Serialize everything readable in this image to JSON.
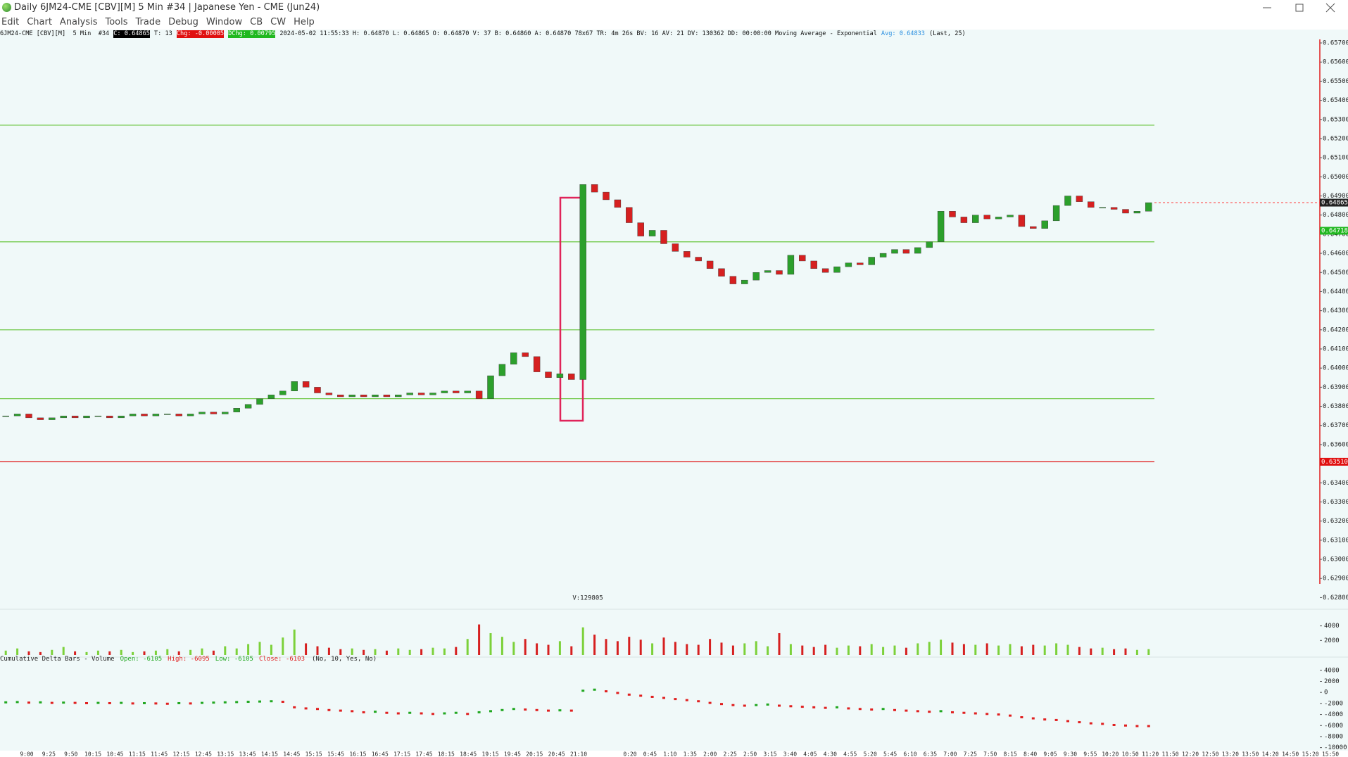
{
  "window": {
    "title": "Daily 6JM24-CME [CBV][M]  5 Min  #34 | Japanese Yen - CME (Jun24)",
    "menu": [
      "Edit",
      "Chart",
      "Analysis",
      "Tools",
      "Trade",
      "Debug",
      "Window",
      "CB",
      "CW",
      "Help"
    ]
  },
  "info_bar": [
    {
      "text": "6JM24-CME [CBV][M]  5 Min  #34",
      "style": "plain"
    },
    {
      "text": "C: 0.64865",
      "style": "black"
    },
    {
      "text": "T: 13",
      "style": "plain"
    },
    {
      "text": "Chg: -0.00005",
      "style": "red"
    },
    {
      "text": "DChg: 0.00795",
      "style": "green"
    },
    {
      "text": "2024-05-02 11:55:33 H: 0.64870 L: 0.64865 O: 0.64870 V: 37 B: 0.64860 A: 0.64870 78x67 TR: 4m 26s BV: 16 AV: 21 DV: 130362 DD: 00:00:00 Moving Average - Exponential",
      "style": "plain"
    },
    {
      "text": "Avg: 0.64833",
      "style": "blue"
    },
    {
      "text": "(Last, 25)",
      "style": "plain"
    }
  ],
  "time_axis": [
    "9:00",
    "9:25",
    "9:50",
    "10:15",
    "10:45",
    "11:15",
    "11:45",
    "12:15",
    "12:45",
    "13:15",
    "13:45",
    "14:15",
    "14:45",
    "15:15",
    "15:45",
    "16:15",
    "16:45",
    "17:15",
    "17:45",
    "18:15",
    "18:45",
    "19:15",
    "19:45",
    "20:15",
    "20:45",
    "21:10",
    "0:20",
    "0:45",
    "1:10",
    "1:35",
    "2:00",
    "2:25",
    "2:50",
    "3:15",
    "3:40",
    "4:05",
    "4:30",
    "4:55",
    "5:20",
    "5:45",
    "6:10",
    "6:35",
    "7:00",
    "7:25",
    "7:50",
    "8:15",
    "8:40",
    "9:05",
    "9:30",
    "9:55",
    "10:20",
    "10:50",
    "11:20",
    "11:50",
    "12:20",
    "12:50",
    "13:20",
    "13:50",
    "14:20",
    "14:50",
    "15:20",
    "15:50"
  ],
  "chart_data": [
    {
      "type": "candlestick",
      "up_color": "#2ca02c",
      "down_color": "#d62020",
      "values": [
        0.6375,
        0.6376,
        0.6374,
        0.6373,
        0.6374,
        0.6375,
        0.6374,
        0.6375,
        0.6375,
        0.6374,
        0.6375,
        0.6376,
        0.6375,
        0.6376,
        0.6376,
        0.6375,
        0.6376,
        0.6377,
        0.6376,
        0.6377,
        0.6379,
        0.6381,
        0.6384,
        0.6386,
        0.6388,
        0.6393,
        0.639,
        0.6387,
        0.6386,
        0.6385,
        0.6386,
        0.6385,
        0.6386,
        0.6385,
        0.6386,
        0.6387,
        0.6386,
        0.6387,
        0.6388,
        0.6387,
        0.6388,
        0.6384,
        0.6396,
        0.6402,
        0.6408,
        0.6406,
        0.6398,
        0.6395,
        0.6397,
        0.6394,
        0.6496,
        0.6492,
        0.6488,
        0.6484,
        0.6476,
        0.6469,
        0.6472,
        0.6465,
        0.6461,
        0.6458,
        0.6456,
        0.6452,
        0.6448,
        0.6444,
        0.6446,
        0.645,
        0.6451,
        0.6449,
        0.6459,
        0.6456,
        0.6452,
        0.645,
        0.6453,
        0.6455,
        0.6454,
        0.6458,
        0.646,
        0.6462,
        0.646,
        0.6463,
        0.6466,
        0.6482,
        0.6479,
        0.6476,
        0.648,
        0.6478,
        0.6479,
        0.648,
        0.6474,
        0.6473,
        0.6477,
        0.6485,
        0.649,
        0.6487,
        0.6484,
        0.6484,
        0.6483,
        0.6481,
        0.6482,
        0.64865
      ],
      "ylim": [
        0.6275,
        0.6572
      ],
      "yticks": [
        {
          "value": 0.657,
          "label": "0.65700"
        },
        {
          "value": 0.656,
          "label": "0.65600"
        },
        {
          "value": 0.655,
          "label": "0.65500"
        },
        {
          "value": 0.654,
          "label": "0.65400"
        },
        {
          "value": 0.653,
          "label": "0.65300"
        },
        {
          "value": 0.652,
          "label": "0.65200"
        },
        {
          "value": 0.651,
          "label": "0.65100"
        },
        {
          "value": 0.65,
          "label": "0.65000"
        },
        {
          "value": 0.649,
          "label": "0.64900"
        },
        {
          "value": 0.648,
          "label": "0.64800"
        },
        {
          "value": 0.647,
          "label": "0.64700"
        },
        {
          "value": 0.646,
          "label": "0.64600"
        },
        {
          "value": 0.645,
          "label": "0.64500"
        },
        {
          "value": 0.644,
          "label": "0.64400"
        },
        {
          "value": 0.643,
          "label": "0.64300"
        },
        {
          "value": 0.642,
          "label": "0.64200"
        },
        {
          "value": 0.641,
          "label": "0.64100"
        },
        {
          "value": 0.64,
          "label": "0.64000"
        },
        {
          "value": 0.639,
          "label": "0.63900"
        },
        {
          "value": 0.638,
          "label": "0.63800"
        },
        {
          "value": 0.637,
          "label": "0.63700"
        },
        {
          "value": 0.636,
          "label": "0.63600"
        },
        {
          "value": 0.635,
          "label": "0.63500"
        },
        {
          "value": 0.634,
          "label": "0.63400"
        },
        {
          "value": 0.633,
          "label": "0.63300"
        },
        {
          "value": 0.632,
          "label": "0.63200"
        },
        {
          "value": 0.631,
          "label": "0.63100"
        },
        {
          "value": 0.63,
          "label": "0.63000"
        },
        {
          "value": 0.629,
          "label": "0.62900"
        },
        {
          "value": 0.628,
          "label": "0.62800"
        }
      ],
      "levels": [
        {
          "value": 0.6527,
          "color": "#66c43a"
        },
        {
          "value": 0.6466,
          "color": "#66c43a"
        },
        {
          "value": 0.642,
          "color": "#66c43a"
        },
        {
          "value": 0.6384,
          "color": "#66c43a"
        }
      ],
      "price_markers": [
        {
          "value": 0.64865,
          "label": "0.64865",
          "color": "#ff3b3b"
        },
        {
          "value": 0.64718,
          "label": "0.64718",
          "color": "#22b822"
        },
        {
          "value": 0.6351,
          "label": "0.63510",
          "color": "#e01010"
        }
      ]
    },
    {
      "type": "volume",
      "annotation": "V:129805",
      "values": [
        600,
        900,
        500,
        400,
        700,
        1100,
        500,
        400,
        600,
        500,
        700,
        400,
        500,
        600,
        800,
        500,
        700,
        900,
        600,
        1200,
        900,
        1500,
        1800,
        1400,
        2400,
        3500,
        1600,
        1200,
        1000,
        800,
        900,
        700,
        800,
        600,
        900,
        700,
        800,
        1000,
        900,
        1100,
        2200,
        4200,
        3000,
        2500,
        1800,
        2200,
        1600,
        1400,
        1900,
        1200,
        3800,
        2800,
        2200,
        1900,
        2500,
        2100,
        1600,
        2400,
        1800,
        1500,
        1400,
        2200,
        1700,
        1300,
        1600,
        1900,
        1200,
        3000,
        1500,
        1300,
        1100,
        1400,
        1000,
        1300,
        1200,
        1500,
        1100,
        1300,
        1000,
        1600,
        1800,
        2100,
        1700,
        1500,
        1400,
        1600,
        1300,
        1500,
        1200,
        1400,
        1300,
        1600,
        1400,
        1100,
        900,
        1000,
        800,
        900,
        700,
        800
      ],
      "ylim": [
        0,
        5900
      ],
      "yticks": [
        2000,
        4000
      ]
    },
    {
      "type": "delta",
      "title": "Cumulative Delta Bars - Volume",
      "stats": [
        "Open: -6105",
        "High: -6095",
        "Low: -6105",
        "Close: -6103"
      ],
      "params": "(No, 10, Yes, No)",
      "values": [
        -1800,
        -1750,
        -1850,
        -1800,
        -1900,
        -1850,
        -1900,
        -1950,
        -1900,
        -1950,
        -1900,
        -2000,
        -1950,
        -2000,
        -2050,
        -1950,
        -2000,
        -1900,
        -1850,
        -1800,
        -1750,
        -1700,
        -1650,
        -1600,
        -1700,
        -2700,
        -2900,
        -3000,
        -3200,
        -3300,
        -3400,
        -3600,
        -3500,
        -3700,
        -3800,
        -3700,
        -3800,
        -3900,
        -3800,
        -3700,
        -3900,
        -3600,
        -3400,
        -3200,
        -3000,
        -3100,
        -3200,
        -3300,
        -3250,
        -3300,
        300,
        500,
        200,
        -100,
        -400,
        -600,
        -800,
        -1000,
        -1200,
        -1400,
        -1600,
        -1900,
        -2100,
        -2300,
        -2400,
        -2300,
        -2200,
        -2400,
        -2500,
        -2600,
        -2700,
        -2800,
        -2700,
        -2900,
        -3000,
        -3100,
        -3000,
        -3200,
        -3300,
        -3400,
        -3500,
        -3400,
        -3600,
        -3700,
        -3800,
        -3900,
        -4000,
        -4200,
        -4500,
        -4700,
        -4900,
        -5000,
        -5200,
        -5400,
        -5600,
        -5700,
        -5900,
        -6000,
        -6100,
        -6103
      ],
      "ylim": [
        -10300,
        5250
      ],
      "yticks": [
        4000,
        2000,
        0,
        -2000,
        -4000,
        -6000,
        -8000,
        -10000
      ]
    }
  ]
}
